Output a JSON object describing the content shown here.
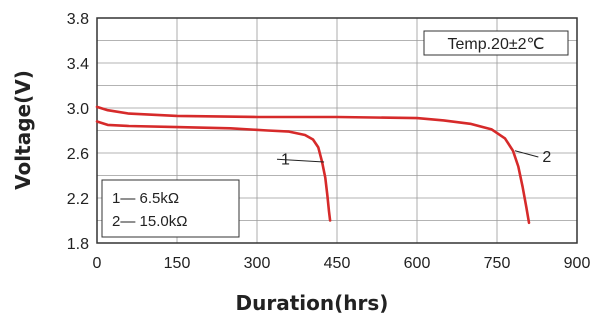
{
  "chart_data": {
    "type": "line",
    "title": "",
    "xlabel": "Duration(hrs)",
    "ylabel": "Voltage(V)",
    "xlim": [
      0,
      900
    ],
    "ylim": [
      1.8,
      3.8
    ],
    "x_ticks": [
      "0",
      "150",
      "300",
      "450",
      "600",
      "750",
      "900"
    ],
    "y_ticks": [
      "1.8",
      "2.2",
      "2.6",
      "3.0",
      "3.4",
      "3.8"
    ],
    "grid": true,
    "temperature_note": "Temp.20±2℃",
    "legend": [
      "1— 6.5kΩ",
      "2— 15.0kΩ"
    ],
    "colors": {
      "line": "#d62a2a",
      "grid": "#9a9a9a",
      "axis": "#333333"
    },
    "series": [
      {
        "name": "1",
        "label_x": 345,
        "label_y": 2.5,
        "points": [
          [
            0,
            2.88
          ],
          [
            20,
            2.85
          ],
          [
            60,
            2.84
          ],
          [
            150,
            2.83
          ],
          [
            250,
            2.82
          ],
          [
            320,
            2.8
          ],
          [
            360,
            2.79
          ],
          [
            390,
            2.76
          ],
          [
            405,
            2.72
          ],
          [
            415,
            2.65
          ],
          [
            422,
            2.52
          ],
          [
            428,
            2.38
          ],
          [
            432,
            2.22
          ],
          [
            435,
            2.08
          ],
          [
            437,
            2.0
          ]
        ]
      },
      {
        "name": "2",
        "label_x": 835,
        "label_y": 2.52,
        "points": [
          [
            0,
            3.01
          ],
          [
            20,
            2.98
          ],
          [
            60,
            2.95
          ],
          [
            150,
            2.93
          ],
          [
            300,
            2.92
          ],
          [
            450,
            2.92
          ],
          [
            600,
            2.91
          ],
          [
            650,
            2.89
          ],
          [
            700,
            2.86
          ],
          [
            740,
            2.81
          ],
          [
            765,
            2.73
          ],
          [
            780,
            2.62
          ],
          [
            790,
            2.48
          ],
          [
            798,
            2.3
          ],
          [
            805,
            2.12
          ],
          [
            810,
            1.98
          ]
        ]
      }
    ]
  }
}
